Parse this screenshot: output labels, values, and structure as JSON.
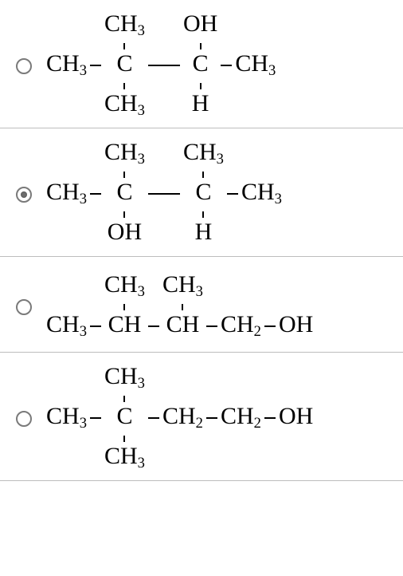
{
  "selected_index": 1,
  "radio": {
    "color": "#7a7a7a",
    "dot_color": "#6d6d6d"
  },
  "divider_color": "#bdbdbd",
  "options": [
    {
      "type": "condensed-structure",
      "backbone_kind": "4C-branched",
      "top": [
        "CH3",
        "OH"
      ],
      "main": [
        "CH3",
        "C",
        "C",
        "CH3"
      ],
      "bottom": [
        "CH3",
        "H"
      ],
      "main_bond_style": "long"
    },
    {
      "type": "condensed-structure",
      "backbone_kind": "4C-branched",
      "top": [
        "CH3",
        "CH3"
      ],
      "main": [
        "CH3",
        "C",
        "C",
        "CH3"
      ],
      "bottom": [
        "OH",
        "H"
      ],
      "main_bond_style": "long"
    },
    {
      "type": "condensed-structure",
      "backbone_kind": "linear",
      "top": [
        "CH3",
        "CH3",
        "",
        ""
      ],
      "main": [
        "CH3",
        "CH",
        "CH",
        "CH2",
        "OH"
      ],
      "bottom": [],
      "main_bond_style": "short"
    },
    {
      "type": "condensed-structure",
      "backbone_kind": "linear",
      "top": [
        "CH3",
        "",
        "",
        ""
      ],
      "main": [
        "CH3",
        "C",
        "CH2",
        "CH2",
        "OH"
      ],
      "bottom": [
        "CH3",
        "",
        "",
        ""
      ],
      "main_bond_style": "short"
    }
  ]
}
